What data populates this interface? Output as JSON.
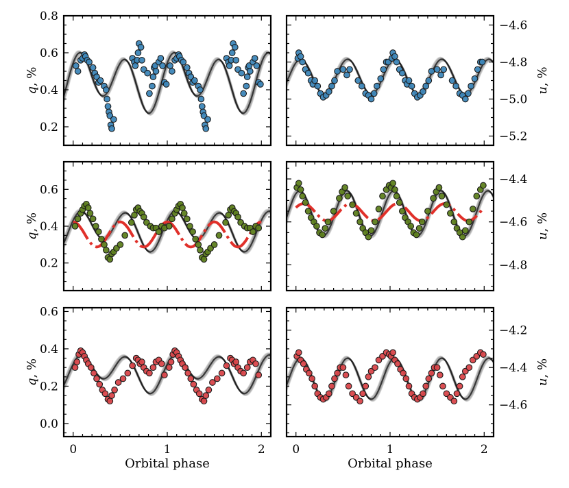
{
  "chart_data": [
    {
      "type": "scatter",
      "panel": "row1-left",
      "xlim": [
        -0.1,
        2.1
      ],
      "ylim": [
        0.1,
        0.8
      ],
      "yticks": [
        0.2,
        0.4,
        0.6,
        0.8
      ],
      "xticks": [
        0,
        1,
        2
      ],
      "ylabel_var": "q",
      "ylabel_unit": ", %",
      "yaxis_side": "left",
      "show_xticklabels": false,
      "xlabel": "",
      "point_color": "#3d86b8",
      "model": {
        "mean": 0.45,
        "a1": -0.05,
        "p1": 0.5,
        "a2": 0.13,
        "p2": 0.06
      },
      "series": [
        {
          "name": "",
          "x": [
            0.03,
            0.05,
            0.08,
            0.1,
            0.12,
            0.13,
            0.15,
            0.17,
            0.21,
            0.23,
            0.25,
            0.27,
            0.29,
            0.33,
            0.35,
            0.36,
            0.37,
            0.38,
            0.39,
            0.4,
            0.41,
            0.43,
            0.63,
            0.65,
            0.66,
            0.68,
            0.69,
            0.7,
            0.72,
            0.73,
            0.75,
            0.79,
            0.81,
            0.84,
            0.85,
            0.86,
            0.87,
            0.88,
            0.91,
            0.93,
            0.95,
            0.97,
            0.99,
            1.03,
            1.05,
            1.08,
            1.1,
            1.12,
            1.13,
            1.15,
            1.17,
            1.21,
            1.23,
            1.25,
            1.27,
            1.29,
            1.33,
            1.35,
            1.36,
            1.37,
            1.38,
            1.39,
            1.4,
            1.41,
            1.43,
            1.63,
            1.65,
            1.66,
            1.68,
            1.69,
            1.7,
            1.72,
            1.73,
            1.75,
            1.79,
            1.81,
            1.84,
            1.85,
            1.86,
            1.87,
            1.88,
            1.91,
            1.93,
            1.95,
            1.97,
            1.99
          ],
          "y": [
            0.53,
            0.5,
            0.56,
            0.57,
            0.59,
            0.58,
            0.56,
            0.55,
            0.52,
            0.49,
            0.47,
            0.44,
            0.45,
            0.42,
            0.4,
            0.35,
            0.31,
            0.28,
            0.26,
            0.21,
            0.19,
            0.24,
            0.57,
            0.55,
            0.53,
            0.56,
            0.6,
            0.65,
            0.63,
            0.56,
            0.51,
            0.49,
            0.38,
            0.42,
            0.47,
            0.52,
            0.53,
            0.5,
            0.55,
            0.57,
            0.53,
            0.44,
            0.43,
            0.53,
            0.5,
            0.56,
            0.57,
            0.59,
            0.58,
            0.56,
            0.55,
            0.52,
            0.49,
            0.47,
            0.44,
            0.45,
            0.42,
            0.4,
            0.35,
            0.31,
            0.28,
            0.26,
            0.21,
            0.19,
            0.24,
            0.57,
            0.55,
            0.53,
            0.56,
            0.6,
            0.65,
            0.63,
            0.56,
            0.51,
            0.49,
            0.38,
            0.42,
            0.47,
            0.52,
            0.53,
            0.5,
            0.55,
            0.57,
            0.53,
            0.44,
            0.43
          ]
        }
      ]
    },
    {
      "type": "scatter",
      "panel": "row1-right",
      "xlim": [
        -0.1,
        2.1
      ],
      "ylim": [
        -5.25,
        -4.55
      ],
      "yticks": [
        -5.2,
        -5.0,
        -4.8,
        -4.6
      ],
      "xticks": [
        0,
        1,
        2
      ],
      "ylabel_var": "u",
      "ylabel_unit": ", %",
      "yaxis_side": "right",
      "show_xticklabels": false,
      "xlabel": "",
      "point_color": "#3d86b8",
      "model": {
        "mean": -4.88,
        "a1": 0.0,
        "p1": 0.0,
        "a2": 0.095,
        "p2": 0.05
      },
      "series": [
        {
          "name": "",
          "x": [
            0.02,
            0.03,
            0.05,
            0.07,
            0.1,
            0.13,
            0.16,
            0.18,
            0.2,
            0.23,
            0.26,
            0.29,
            0.32,
            0.35,
            0.38,
            0.41,
            0.44,
            0.5,
            0.54,
            0.57,
            0.66,
            0.7,
            0.74,
            0.77,
            0.8,
            0.83,
            0.86,
            0.9,
            0.93,
            0.96,
            0.98,
            1.02,
            1.03,
            1.05,
            1.07,
            1.1,
            1.13,
            1.16,
            1.18,
            1.2,
            1.23,
            1.26,
            1.29,
            1.32,
            1.35,
            1.38,
            1.41,
            1.44,
            1.5,
            1.54,
            1.57,
            1.66,
            1.7,
            1.74,
            1.77,
            1.8,
            1.83,
            1.86,
            1.9,
            1.93,
            1.96,
            1.98
          ],
          "y": [
            -4.78,
            -4.75,
            -4.77,
            -4.8,
            -4.84,
            -4.86,
            -4.9,
            -4.92,
            -4.9,
            -4.93,
            -4.97,
            -4.99,
            -4.98,
            -4.96,
            -4.93,
            -4.9,
            -4.85,
            -4.84,
            -4.87,
            -4.84,
            -4.9,
            -4.93,
            -4.97,
            -4.98,
            -5.0,
            -4.97,
            -4.93,
            -4.89,
            -4.84,
            -4.8,
            -4.8,
            -4.78,
            -4.75,
            -4.77,
            -4.8,
            -4.84,
            -4.86,
            -4.9,
            -4.92,
            -4.9,
            -4.93,
            -4.97,
            -4.99,
            -4.98,
            -4.96,
            -4.93,
            -4.9,
            -4.85,
            -4.84,
            -4.87,
            -4.84,
            -4.9,
            -4.93,
            -4.97,
            -4.98,
            -5.0,
            -4.97,
            -4.93,
            -4.89,
            -4.84,
            -4.8,
            -4.8
          ]
        }
      ]
    },
    {
      "type": "scatter",
      "panel": "row2-left",
      "xlim": [
        -0.1,
        2.1
      ],
      "ylim": [
        0.05,
        0.75
      ],
      "yticks": [
        0.2,
        0.4,
        0.6
      ],
      "xticks": [
        0,
        1,
        2
      ],
      "ylabel_var": "q",
      "ylabel_unit": ", %",
      "yaxis_side": "left",
      "show_xticklabels": false,
      "xlabel": "",
      "point_color": "#5e7f1e",
      "model": {
        "mean": 0.385,
        "a1": -0.035,
        "p1": 0.55,
        "a2": 0.09,
        "p2": 0.07
      },
      "reference_model": {
        "mean": 0.355,
        "a1": 0.0,
        "p1": 0.0,
        "a2": 0.068,
        "p2": 0.0
      },
      "reference_color": "#e0302a",
      "series": [
        {
          "name": "",
          "x": [
            0.02,
            0.05,
            0.08,
            0.1,
            0.12,
            0.14,
            0.16,
            0.18,
            0.21,
            0.24,
            0.27,
            0.3,
            0.33,
            0.35,
            0.37,
            0.39,
            0.41,
            0.43,
            0.46,
            0.5,
            0.55,
            0.62,
            0.65,
            0.67,
            0.69,
            0.71,
            0.73,
            0.75,
            0.78,
            0.82,
            0.85,
            0.88,
            0.91,
            0.94,
            0.97,
            1.02,
            1.05,
            1.08,
            1.1,
            1.12,
            1.14,
            1.16,
            1.18,
            1.21,
            1.24,
            1.27,
            1.3,
            1.33,
            1.35,
            1.37,
            1.39,
            1.41,
            1.43,
            1.46,
            1.5,
            1.55,
            1.62,
            1.65,
            1.67,
            1.69,
            1.71,
            1.73,
            1.75,
            1.78,
            1.82,
            1.85,
            1.88,
            1.91,
            1.94,
            1.97
          ],
          "y": [
            0.4,
            0.44,
            0.47,
            0.49,
            0.51,
            0.52,
            0.5,
            0.47,
            0.44,
            0.4,
            0.37,
            0.33,
            0.3,
            0.27,
            0.23,
            0.22,
            0.25,
            0.26,
            0.28,
            0.3,
            0.35,
            0.42,
            0.46,
            0.49,
            0.5,
            0.48,
            0.47,
            0.45,
            0.42,
            0.4,
            0.39,
            0.39,
            0.37,
            0.4,
            0.39,
            0.4,
            0.44,
            0.47,
            0.49,
            0.51,
            0.52,
            0.5,
            0.47,
            0.44,
            0.4,
            0.37,
            0.33,
            0.3,
            0.27,
            0.23,
            0.22,
            0.25,
            0.26,
            0.28,
            0.3,
            0.35,
            0.42,
            0.46,
            0.49,
            0.5,
            0.48,
            0.47,
            0.45,
            0.42,
            0.4,
            0.39,
            0.39,
            0.37,
            0.4,
            0.39
          ]
        }
      ]
    },
    {
      "type": "scatter",
      "panel": "row2-right",
      "xlim": [
        -0.1,
        2.1
      ],
      "ylim": [
        -4.92,
        -4.32
      ],
      "yticks": [
        -4.8,
        -4.6,
        -4.4
      ],
      "xticks": [
        0,
        1,
        2
      ],
      "ylabel_var": "u",
      "ylabel_unit": ", %",
      "yaxis_side": "right",
      "show_xticklabels": false,
      "xlabel": "",
      "point_color": "#5e7f1e",
      "model": {
        "mean": -4.56,
        "a1": 0.0,
        "p1": 0.0,
        "a2": 0.105,
        "p2": 0.04
      },
      "reference_model": {
        "mean": -4.555,
        "a1": 0.0,
        "p1": 0.0,
        "a2": 0.04,
        "p2": 0.08
      },
      "reference_color": "#e0302a",
      "series": [
        {
          "name": "",
          "x": [
            0.01,
            0.03,
            0.05,
            0.07,
            0.1,
            0.13,
            0.16,
            0.19,
            0.22,
            0.25,
            0.28,
            0.31,
            0.34,
            0.4,
            0.46,
            0.49,
            0.52,
            0.55,
            0.6,
            0.64,
            0.68,
            0.71,
            0.74,
            0.77,
            0.8,
            0.84,
            0.88,
            0.92,
            0.96,
            0.99,
            1.01,
            1.03,
            1.05,
            1.07,
            1.1,
            1.13,
            1.16,
            1.19,
            1.22,
            1.25,
            1.28,
            1.31,
            1.34,
            1.4,
            1.46,
            1.49,
            1.52,
            1.55,
            1.6,
            1.64,
            1.68,
            1.71,
            1.74,
            1.77,
            1.8,
            1.84,
            1.88,
            1.92,
            1.96,
            1.99
          ],
          "y": [
            -4.44,
            -4.42,
            -4.45,
            -4.48,
            -4.51,
            -4.55,
            -4.58,
            -4.6,
            -4.62,
            -4.65,
            -4.66,
            -4.63,
            -4.6,
            -4.55,
            -4.49,
            -4.46,
            -4.44,
            -4.48,
            -4.52,
            -4.56,
            -4.6,
            -4.63,
            -4.65,
            -4.67,
            -4.64,
            -4.6,
            -4.54,
            -4.48,
            -4.45,
            -4.43,
            -4.44,
            -4.42,
            -4.45,
            -4.48,
            -4.51,
            -4.55,
            -4.58,
            -4.6,
            -4.62,
            -4.65,
            -4.66,
            -4.63,
            -4.6,
            -4.55,
            -4.49,
            -4.46,
            -4.44,
            -4.48,
            -4.52,
            -4.56,
            -4.6,
            -4.63,
            -4.65,
            -4.67,
            -4.64,
            -4.6,
            -4.54,
            -4.48,
            -4.45,
            -4.43
          ]
        }
      ]
    },
    {
      "type": "scatter",
      "panel": "row3-left",
      "xlim": [
        -0.1,
        2.1
      ],
      "ylim": [
        -0.07,
        0.62
      ],
      "yticks": [
        0.0,
        0.2,
        0.4,
        0.6
      ],
      "xticks": [
        0,
        1,
        2
      ],
      "xticklabels": [
        "0",
        "1",
        "2"
      ],
      "ylabel_var": "q",
      "ylabel_unit": ", %",
      "yaxis_side": "left",
      "show_xticklabels": true,
      "xlabel": "Orbital phase",
      "point_color": "#d9464a",
      "model": {
        "mean": 0.28,
        "a1": -0.04,
        "p1": 0.55,
        "a2": 0.08,
        "p2": 0.07
      },
      "series": [
        {
          "name": "",
          "x": [
            0.02,
            0.04,
            0.06,
            0.08,
            0.1,
            0.12,
            0.14,
            0.16,
            0.19,
            0.22,
            0.25,
            0.28,
            0.31,
            0.34,
            0.37,
            0.39,
            0.41,
            0.44,
            0.48,
            0.53,
            0.58,
            0.63,
            0.67,
            0.69,
            0.71,
            0.73,
            0.75,
            0.78,
            0.81,
            0.85,
            0.88,
            0.91,
            0.94,
            0.97,
            1.02,
            1.04,
            1.06,
            1.08,
            1.1,
            1.12,
            1.14,
            1.16,
            1.19,
            1.22,
            1.25,
            1.28,
            1.31,
            1.34,
            1.37,
            1.39,
            1.41,
            1.44,
            1.48,
            1.53,
            1.58,
            1.63,
            1.67,
            1.69,
            1.71,
            1.73,
            1.75,
            1.78,
            1.81,
            1.85,
            1.88,
            1.91,
            1.94,
            1.97
          ],
          "y": [
            0.3,
            0.33,
            0.37,
            0.39,
            0.38,
            0.36,
            0.34,
            0.32,
            0.3,
            0.27,
            0.24,
            0.21,
            0.18,
            0.16,
            0.13,
            0.12,
            0.15,
            0.18,
            0.22,
            0.24,
            0.27,
            0.31,
            0.35,
            0.34,
            0.32,
            0.33,
            0.3,
            0.28,
            0.27,
            0.3,
            0.33,
            0.34,
            0.32,
            0.26,
            0.3,
            0.33,
            0.37,
            0.39,
            0.38,
            0.36,
            0.34,
            0.32,
            0.3,
            0.27,
            0.24,
            0.21,
            0.18,
            0.16,
            0.13,
            0.12,
            0.15,
            0.18,
            0.22,
            0.24,
            0.27,
            0.31,
            0.35,
            0.34,
            0.32,
            0.33,
            0.3,
            0.28,
            0.27,
            0.3,
            0.33,
            0.34,
            0.32,
            0.26
          ]
        }
      ]
    },
    {
      "type": "scatter",
      "panel": "row3-right",
      "xlim": [
        -0.1,
        2.1
      ],
      "ylim": [
        -4.77,
        -4.08
      ],
      "yticks": [
        -4.6,
        -4.4,
        -4.2
      ],
      "xticks": [
        0,
        1,
        2
      ],
      "xticklabels": [
        "0",
        "1",
        "2"
      ],
      "ylabel_var": "u",
      "ylabel_unit": ", %",
      "yaxis_side": "right",
      "show_xticklabels": true,
      "xlabel": "Orbital phase",
      "point_color": "#d9464a",
      "model": {
        "mean": -4.46,
        "a1": 0.0,
        "p1": 0.0,
        "a2": 0.11,
        "p2": 0.05
      },
      "series": [
        {
          "name": "",
          "x": [
            0.01,
            0.03,
            0.05,
            0.08,
            0.11,
            0.14,
            0.17,
            0.2,
            0.23,
            0.26,
            0.29,
            0.32,
            0.35,
            0.38,
            0.41,
            0.44,
            0.47,
            0.5,
            0.53,
            0.56,
            0.6,
            0.64,
            0.68,
            0.71,
            0.74,
            0.77,
            0.8,
            0.84,
            0.88,
            0.92,
            0.96,
            0.99,
            1.01,
            1.03,
            1.05,
            1.08,
            1.11,
            1.14,
            1.17,
            1.2,
            1.23,
            1.26,
            1.29,
            1.32,
            1.35,
            1.38,
            1.41,
            1.44,
            1.47,
            1.5,
            1.53,
            1.56,
            1.6,
            1.64,
            1.68,
            1.71,
            1.74,
            1.77,
            1.8,
            1.84,
            1.88,
            1.92,
            1.96,
            1.99
          ],
          "y": [
            -4.34,
            -4.32,
            -4.36,
            -4.38,
            -4.41,
            -4.43,
            -4.46,
            -4.5,
            -4.54,
            -4.56,
            -4.57,
            -4.56,
            -4.54,
            -4.5,
            -4.46,
            -4.43,
            -4.4,
            -4.4,
            -4.44,
            -4.5,
            -4.54,
            -4.56,
            -4.58,
            -4.54,
            -4.5,
            -4.45,
            -4.42,
            -4.4,
            -4.36,
            -4.34,
            -4.32,
            -4.33,
            -4.34,
            -4.32,
            -4.36,
            -4.38,
            -4.41,
            -4.43,
            -4.46,
            -4.5,
            -4.54,
            -4.56,
            -4.57,
            -4.56,
            -4.54,
            -4.5,
            -4.46,
            -4.43,
            -4.4,
            -4.4,
            -4.44,
            -4.5,
            -4.54,
            -4.56,
            -4.58,
            -4.54,
            -4.5,
            -4.45,
            -4.42,
            -4.4,
            -4.36,
            -4.34,
            -4.32,
            -4.33
          ]
        }
      ]
    }
  ]
}
